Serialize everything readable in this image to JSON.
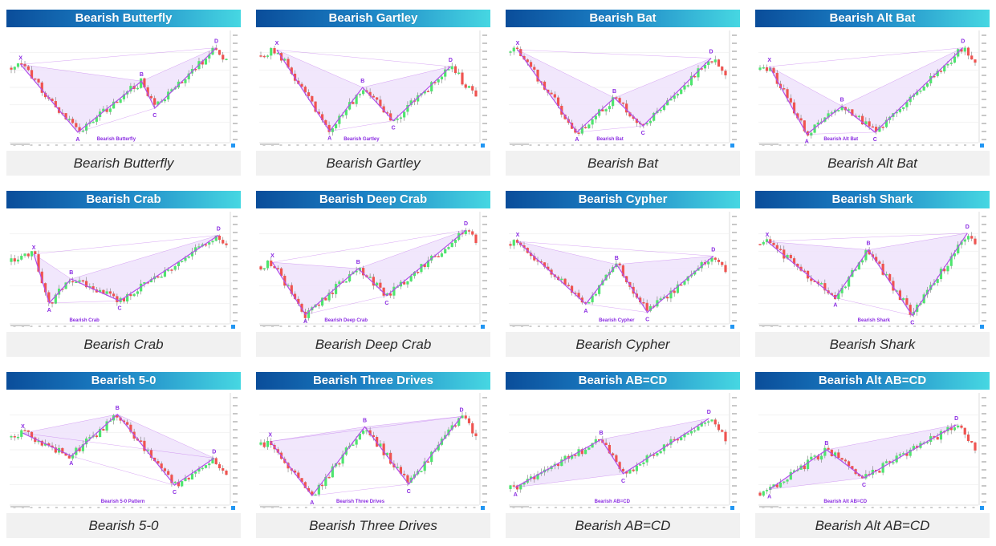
{
  "colors": {
    "header_start": "#0a4d9a",
    "header_end": "#46d7e2",
    "pattern_line": "#b24dea",
    "pattern_fill": "#efe3fb",
    "candle_up": "#4ee56e",
    "candle_down": "#ef5350",
    "card_bg": "#f1f1f1"
  },
  "cards": [
    {
      "title": "Bearish Butterfly",
      "caption": "Bearish Butterfly",
      "pattern_label": "Bearish Butterfly",
      "points": [
        {
          "label": "X",
          "x": 0.05,
          "y": 0.28
        },
        {
          "label": "A",
          "x": 0.31,
          "y": 0.93
        },
        {
          "label": "B",
          "x": 0.6,
          "y": 0.44
        },
        {
          "label": "C",
          "x": 0.66,
          "y": 0.7
        },
        {
          "label": "D",
          "x": 0.94,
          "y": 0.12
        }
      ]
    },
    {
      "title": "Bearish Gartley",
      "caption": "Bearish Gartley",
      "pattern_label": "Bearish Gartley",
      "points": [
        {
          "label": "X",
          "x": 0.08,
          "y": 0.14
        },
        {
          "label": "A",
          "x": 0.32,
          "y": 0.92
        },
        {
          "label": "B",
          "x": 0.47,
          "y": 0.5
        },
        {
          "label": "C",
          "x": 0.61,
          "y": 0.82
        },
        {
          "label": "D",
          "x": 0.87,
          "y": 0.3
        }
      ]
    },
    {
      "title": "Bearish Bat",
      "caption": "Bearish Bat",
      "pattern_label": "Bearish Bat",
      "points": [
        {
          "label": "X",
          "x": 0.04,
          "y": 0.14
        },
        {
          "label": "A",
          "x": 0.31,
          "y": 0.93
        },
        {
          "label": "B",
          "x": 0.48,
          "y": 0.6
        },
        {
          "label": "C",
          "x": 0.61,
          "y": 0.87
        },
        {
          "label": "D",
          "x": 0.92,
          "y": 0.22
        }
      ]
    },
    {
      "title": "Bearish Alt Bat",
      "caption": "Bearish Alt Bat",
      "pattern_label": "Bearish Alt Bat",
      "points": [
        {
          "label": "X",
          "x": 0.05,
          "y": 0.3
        },
        {
          "label": "A",
          "x": 0.22,
          "y": 0.95
        },
        {
          "label": "B",
          "x": 0.38,
          "y": 0.68
        },
        {
          "label": "C",
          "x": 0.53,
          "y": 0.93
        },
        {
          "label": "D",
          "x": 0.93,
          "y": 0.12
        }
      ]
    },
    {
      "title": "Bearish Crab",
      "caption": "Bearish Crab",
      "pattern_label": "Bearish Crab",
      "points": [
        {
          "label": "X",
          "x": 0.11,
          "y": 0.36
        },
        {
          "label": "A",
          "x": 0.18,
          "y": 0.83
        },
        {
          "label": "B",
          "x": 0.28,
          "y": 0.6
        },
        {
          "label": "C",
          "x": 0.5,
          "y": 0.81
        },
        {
          "label": "D",
          "x": 0.95,
          "y": 0.18
        }
      ]
    },
    {
      "title": "Bearish Deep Crab",
      "caption": "Bearish Deep Crab",
      "pattern_label": "Bearish Deep Crab",
      "points": [
        {
          "label": "X",
          "x": 0.06,
          "y": 0.44
        },
        {
          "label": "A",
          "x": 0.21,
          "y": 0.94
        },
        {
          "label": "B",
          "x": 0.45,
          "y": 0.5
        },
        {
          "label": "C",
          "x": 0.58,
          "y": 0.76
        },
        {
          "label": "D",
          "x": 0.94,
          "y": 0.13
        }
      ]
    },
    {
      "title": "Bearish Cypher",
      "caption": "Bearish Cypher",
      "pattern_label": "Bearish Cypher",
      "points": [
        {
          "label": "X",
          "x": 0.04,
          "y": 0.24
        },
        {
          "label": "A",
          "x": 0.35,
          "y": 0.84
        },
        {
          "label": "B",
          "x": 0.49,
          "y": 0.46
        },
        {
          "label": "C",
          "x": 0.63,
          "y": 0.92
        },
        {
          "label": "D",
          "x": 0.93,
          "y": 0.38
        }
      ]
    },
    {
      "title": "Bearish Shark",
      "caption": "Bearish Shark",
      "pattern_label": "Bearish Shark",
      "points": [
        {
          "label": "X",
          "x": 0.04,
          "y": 0.24
        },
        {
          "label": "A",
          "x": 0.35,
          "y": 0.78
        },
        {
          "label": "B",
          "x": 0.5,
          "y": 0.32
        },
        {
          "label": "C",
          "x": 0.7,
          "y": 0.95
        },
        {
          "label": "D",
          "x": 0.95,
          "y": 0.16
        }
      ]
    },
    {
      "title": "Bearish 5-0",
      "caption": "Bearish 5-0",
      "pattern_label": "Bearish 5-0 Pattern",
      "points": [
        {
          "label": "X",
          "x": 0.06,
          "y": 0.34
        },
        {
          "label": "A",
          "x": 0.28,
          "y": 0.56
        },
        {
          "label": "B",
          "x": 0.49,
          "y": 0.16
        },
        {
          "label": "C",
          "x": 0.75,
          "y": 0.84
        },
        {
          "label": "D",
          "x": 0.93,
          "y": 0.58
        }
      ]
    },
    {
      "title": "Bearish Three Drives",
      "caption": "Bearish Three Drives",
      "pattern_label": "Bearish Three Drives",
      "points": [
        {
          "label": "X",
          "x": 0.05,
          "y": 0.42
        },
        {
          "label": "A",
          "x": 0.24,
          "y": 0.94
        },
        {
          "label": "B",
          "x": 0.48,
          "y": 0.28
        },
        {
          "label": "C",
          "x": 0.68,
          "y": 0.83
        },
        {
          "label": "D",
          "x": 0.92,
          "y": 0.18
        }
      ]
    },
    {
      "title": "Bearish AB=CD",
      "caption": "Bearish AB=CD",
      "pattern_label": "Bearish AB=CD",
      "points": [
        {
          "label": "A",
          "x": 0.03,
          "y": 0.86
        },
        {
          "label": "B",
          "x": 0.42,
          "y": 0.4
        },
        {
          "label": "C",
          "x": 0.52,
          "y": 0.73
        },
        {
          "label": "D",
          "x": 0.91,
          "y": 0.2
        }
      ]
    },
    {
      "title": "Bearish Alt AB=CD",
      "caption": "Bearish Alt AB=CD",
      "pattern_label": "Bearish Alt AB=CD",
      "points": [
        {
          "label": "A",
          "x": 0.05,
          "y": 0.88
        },
        {
          "label": "B",
          "x": 0.31,
          "y": 0.5
        },
        {
          "label": "C",
          "x": 0.48,
          "y": 0.77
        },
        {
          "label": "D",
          "x": 0.9,
          "y": 0.26
        }
      ]
    }
  ]
}
